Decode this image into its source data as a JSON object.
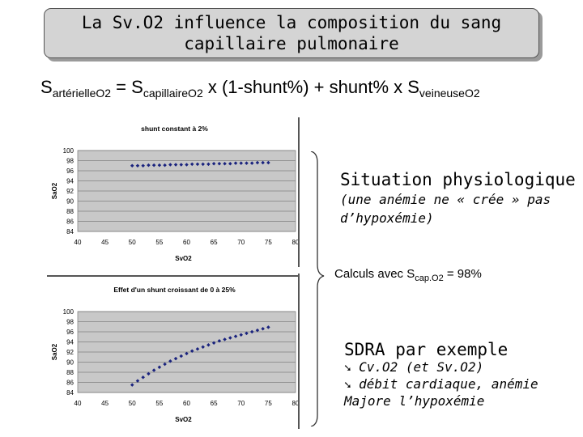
{
  "title": {
    "line1": "La Sv.O2 influence  la composition du sang",
    "line2": "capillaire pulmonaire"
  },
  "formula": {
    "s1": "S",
    "sub1": "artérielleO2",
    "eq": " = S",
    "sub2": "capillaireO2",
    "mid": " x (1-shunt%) + shunt% x S",
    "sub3": "veineuseO2"
  },
  "right": {
    "situation_title": "Situation physiologique",
    "situation_note_1": "(une anémie ne « crée » pas",
    "situation_note_2": "d’hypoxémie)",
    "calc_prefix": "Calculs avec S",
    "calc_sub": "cap.O2",
    "calc_suffix": " = 98%",
    "sdra_title": "SDRA par exemple",
    "sdra_arrow_icon": "arrow-down-right",
    "sdra_line1": "Cv.O2 (et Sv.O2)",
    "sdra_line2": "débit cardiaque, anémie",
    "sdra_line3": "Majore l’hypoxémie"
  },
  "chart_data": [
    {
      "type": "scatter",
      "title": "shunt constant à 2%",
      "xlabel": "SvO2",
      "ylabel": "SaO2",
      "xlim": [
        40,
        80
      ],
      "ylim": [
        84,
        100
      ],
      "xticks": [
        "40",
        "45",
        "50",
        "55",
        "60",
        "65",
        "70",
        "75",
        "80"
      ],
      "yticks": [
        "100",
        "98",
        "96",
        "94",
        "92",
        "90",
        "88",
        "86",
        "84"
      ],
      "grid": true,
      "color": "#1a237e",
      "x": [
        50,
        51,
        52,
        53,
        54,
        55,
        56,
        57,
        58,
        59,
        60,
        61,
        62,
        63,
        64,
        65,
        66,
        67,
        68,
        69,
        70,
        71,
        72,
        73,
        74,
        75
      ],
      "y": [
        97.0,
        97.0,
        97.0,
        97.1,
        97.1,
        97.1,
        97.1,
        97.2,
        97.2,
        97.2,
        97.2,
        97.3,
        97.3,
        97.3,
        97.3,
        97.4,
        97.4,
        97.4,
        97.4,
        97.5,
        97.5,
        97.5,
        97.5,
        97.6,
        97.6,
        97.6
      ]
    },
    {
      "type": "scatter",
      "title": "Effet d'un shunt croissant de 0 à 25%",
      "xlabel": "SvO2",
      "ylabel": "SaO2",
      "xlim": [
        40,
        80
      ],
      "ylim": [
        84,
        100
      ],
      "xticks": [
        "40",
        "45",
        "50",
        "55",
        "60",
        "65",
        "70",
        "75",
        "80"
      ],
      "yticks": [
        "100",
        "98",
        "96",
        "94",
        "92",
        "90",
        "88",
        "86",
        "84"
      ],
      "grid": true,
      "color": "#1a237e",
      "x": [
        50,
        51,
        52,
        53,
        54,
        55,
        56,
        57,
        58,
        59,
        60,
        61,
        62,
        63,
        64,
        65,
        66,
        67,
        68,
        69,
        70,
        71,
        72,
        73,
        74,
        75
      ],
      "y": [
        85.5,
        86.3,
        87.0,
        87.7,
        88.4,
        89.0,
        89.6,
        90.2,
        90.7,
        91.2,
        91.7,
        92.2,
        92.6,
        93.0,
        93.4,
        93.8,
        94.2,
        94.5,
        94.8,
        95.1,
        95.4,
        95.7,
        96.0,
        96.3,
        96.6,
        96.9
      ]
    }
  ]
}
